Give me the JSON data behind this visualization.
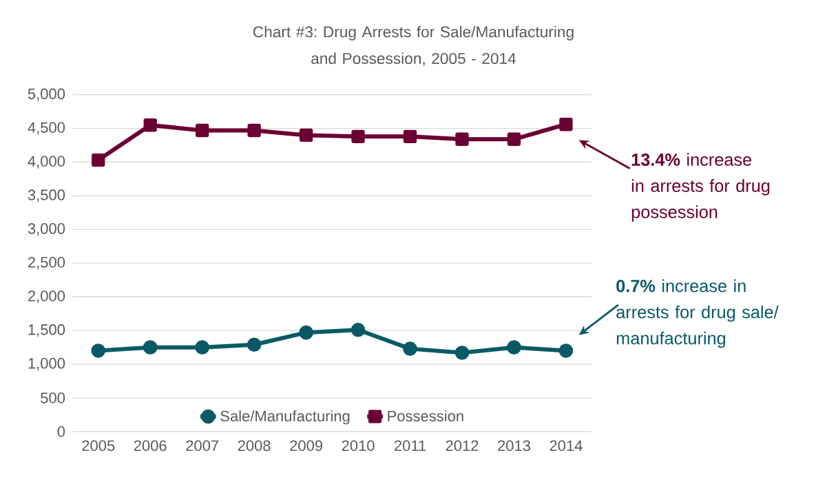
{
  "chart_data": {
    "type": "line",
    "title": "Chart #3: Drug Arrests for Sale/Manufacturing and Possession, 2005 - 2014",
    "categories": [
      "2005",
      "2006",
      "2007",
      "2008",
      "2009",
      "2010",
      "2011",
      "2012",
      "2013",
      "2014"
    ],
    "series": [
      {
        "name": "Sale/Manufacturing",
        "color": "#0a5a66",
        "marker": "circle",
        "values": [
          1200,
          1250,
          1250,
          1290,
          1470,
          1510,
          1230,
          1170,
          1250,
          1200
        ]
      },
      {
        "name": "Possession",
        "color": "#6b0033",
        "marker": "square",
        "values": [
          4030,
          4550,
          4470,
          4470,
          4400,
          4380,
          4380,
          4340,
          4340,
          4560
        ]
      }
    ],
    "ylim": [
      0,
      5000
    ],
    "yticks": [
      0,
      500,
      {
        "value": 1000,
        "label": "1,000"
      },
      {
        "value": 1500,
        "label": "1,500"
      },
      {
        "value": 2000,
        "label": "2,000"
      },
      {
        "value": 2500,
        "label": "2,500"
      },
      {
        "value": 3000,
        "label": "3,000"
      },
      {
        "value": 3500,
        "label": "3,500"
      },
      {
        "value": 4000,
        "label": "4,000"
      },
      {
        "value": 4500,
        "label": "4,500"
      },
      {
        "value": 5000,
        "label": "5,000"
      }
    ],
    "grid": "y",
    "legend": "bottom",
    "line_style": "solid",
    "annotations": [
      "**13.4%** increase in arrests for drug possession",
      "**0.7%** increase in arrests for drug sale/ manufacturing"
    ]
  }
}
